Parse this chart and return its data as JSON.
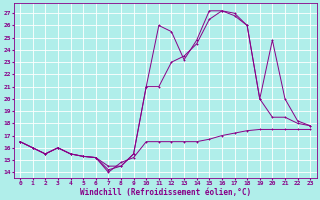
{
  "xlabel": "Windchill (Refroidissement éolien,°C)",
  "bg_color": "#b0eeea",
  "line_color": "#880088",
  "grid_color": "#ffffff",
  "xlim": [
    -0.5,
    23.5
  ],
  "ylim": [
    13.5,
    27.8
  ],
  "yticks": [
    14,
    15,
    16,
    17,
    18,
    19,
    20,
    21,
    22,
    23,
    24,
    25,
    26,
    27
  ],
  "xticks": [
    0,
    1,
    2,
    3,
    4,
    5,
    6,
    7,
    8,
    9,
    10,
    11,
    12,
    13,
    14,
    15,
    16,
    17,
    18,
    19,
    20,
    21,
    22,
    23
  ],
  "s1_x": [
    0,
    1,
    2,
    3,
    4,
    5,
    6,
    7,
    8,
    9,
    10,
    11,
    12,
    13,
    14,
    15,
    16,
    17,
    18,
    19,
    20,
    21,
    22,
    23
  ],
  "s1_y": [
    16.5,
    16.0,
    15.5,
    16.0,
    15.5,
    15.3,
    15.2,
    14.0,
    14.8,
    15.2,
    16.5,
    16.5,
    16.5,
    16.5,
    16.5,
    16.7,
    17.0,
    17.2,
    17.4,
    17.5,
    17.5,
    17.5,
    17.5,
    17.5
  ],
  "s2_x": [
    0,
    1,
    2,
    3,
    4,
    5,
    6,
    7,
    8,
    9,
    10,
    11,
    12,
    13,
    14,
    15,
    16,
    17,
    18,
    19,
    20,
    21,
    22,
    23
  ],
  "s2_y": [
    16.5,
    16.0,
    15.5,
    16.0,
    15.5,
    15.3,
    15.2,
    14.2,
    14.5,
    15.5,
    21.0,
    21.0,
    23.0,
    23.5,
    24.5,
    26.5,
    27.2,
    26.8,
    26.0,
    20.0,
    24.8,
    20.0,
    18.2,
    17.8
  ],
  "s3_x": [
    0,
    1,
    2,
    3,
    4,
    5,
    6,
    7,
    8,
    9,
    10,
    11,
    12,
    13,
    14,
    15,
    16,
    17,
    18,
    19,
    20,
    21,
    22,
    23
  ],
  "s3_y": [
    16.5,
    16.0,
    15.5,
    16.0,
    15.5,
    15.3,
    15.2,
    14.5,
    14.5,
    15.5,
    21.0,
    26.0,
    25.5,
    23.2,
    24.8,
    27.2,
    27.2,
    27.0,
    26.0,
    20.0,
    18.5,
    18.5,
    18.0,
    17.8
  ],
  "xlabel_fontsize": 5.5,
  "tick_fontsize": 4.5
}
